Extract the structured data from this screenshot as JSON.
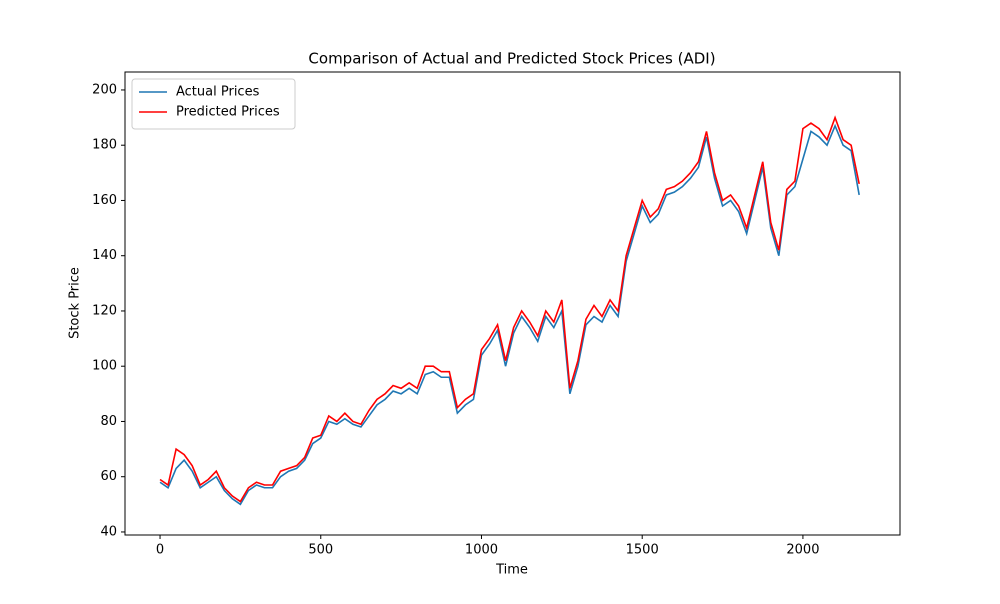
{
  "chart_data": {
    "type": "line",
    "title": "Comparison of Actual and Predicted Stock Prices (ADI)",
    "x_label": "Time",
    "y_label": "Stock Price",
    "x": [
      0,
      25,
      50,
      75,
      100,
      125,
      150,
      175,
      200,
      225,
      250,
      275,
      300,
      325,
      350,
      375,
      400,
      425,
      450,
      475,
      500,
      525,
      550,
      575,
      600,
      625,
      650,
      675,
      700,
      725,
      750,
      775,
      800,
      825,
      850,
      875,
      900,
      925,
      950,
      975,
      1000,
      1025,
      1050,
      1075,
      1100,
      1125,
      1150,
      1175,
      1200,
      1225,
      1250,
      1275,
      1300,
      1325,
      1350,
      1375,
      1400,
      1425,
      1450,
      1475,
      1500,
      1525,
      1550,
      1575,
      1600,
      1625,
      1650,
      1675,
      1700,
      1725,
      1750,
      1775,
      1800,
      1825,
      1850,
      1875,
      1900,
      1925,
      1950,
      1975,
      2000,
      2025,
      2050,
      2075,
      2100,
      2125,
      2150,
      2175
    ],
    "series": [
      {
        "name": "Actual Prices",
        "color": "#1f77b4",
        "values": [
          58,
          56,
          63,
          66,
          62,
          56,
          58,
          60,
          55,
          52,
          50,
          55,
          57,
          56,
          56,
          60,
          62,
          63,
          66,
          72,
          74,
          80,
          79,
          81,
          79,
          78,
          82,
          86,
          88,
          91,
          90,
          92,
          90,
          97,
          98,
          96,
          96,
          83,
          86,
          88,
          104,
          108,
          113,
          100,
          112,
          118,
          114,
          109,
          118,
          114,
          120,
          90,
          100,
          115,
          118,
          116,
          122,
          118,
          138,
          148,
          158,
          152,
          155,
          162,
          163,
          165,
          168,
          172,
          183,
          168,
          158,
          160,
          156,
          148,
          160,
          172,
          150,
          140,
          162,
          165,
          175,
          185,
          183,
          180,
          187,
          180,
          178,
          162
        ]
      },
      {
        "name": "Predicted Prices",
        "color": "#ff0000",
        "values": [
          59,
          57,
          70,
          68,
          64,
          57,
          59,
          62,
          56,
          53,
          51,
          56,
          58,
          57,
          57,
          62,
          63,
          64,
          67,
          74,
          75,
          82,
          80,
          83,
          80,
          79,
          84,
          88,
          90,
          93,
          92,
          94,
          92,
          100,
          100,
          98,
          98,
          85,
          88,
          90,
          106,
          110,
          115,
          102,
          114,
          120,
          116,
          111,
          120,
          116,
          124,
          92,
          102,
          117,
          122,
          118,
          124,
          120,
          140,
          150,
          160,
          154,
          157,
          164,
          165,
          167,
          170,
          174,
          185,
          170,
          160,
          162,
          158,
          150,
          162,
          174,
          152,
          142,
          164,
          167,
          186,
          188,
          186,
          182,
          190,
          182,
          180,
          166
        ]
      }
    ],
    "xlim": [
      -109,
      2302
    ],
    "ylim": [
      38.9,
      206.5
    ],
    "xticks": [
      0,
      500,
      1000,
      1500,
      2000
    ],
    "yticks": [
      40,
      60,
      80,
      100,
      120,
      140,
      160,
      180,
      200
    ],
    "legend": "upper left"
  }
}
